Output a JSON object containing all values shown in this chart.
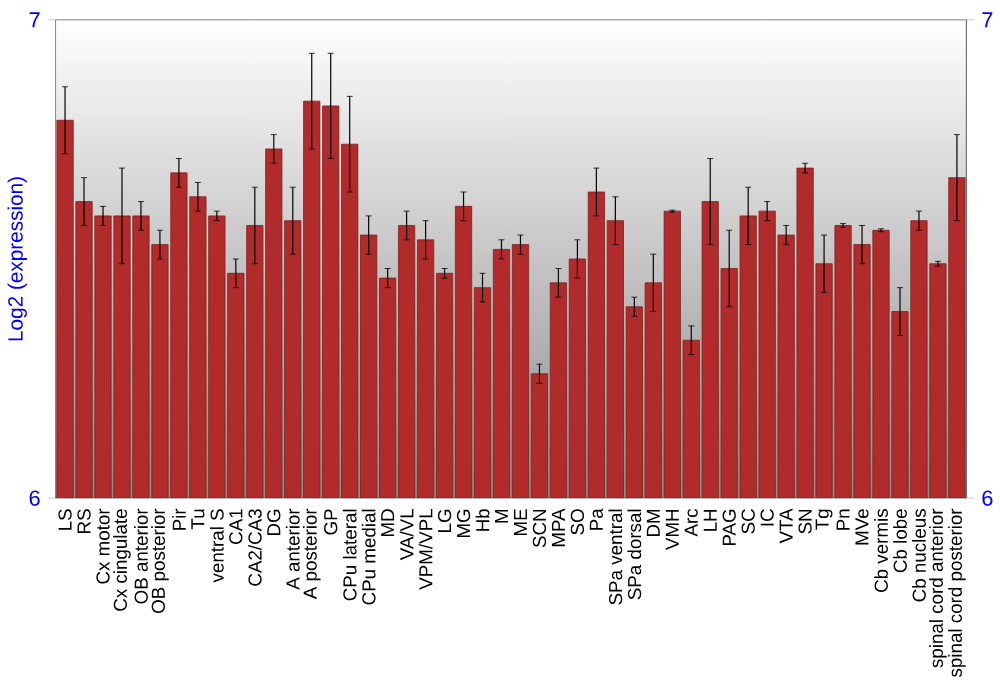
{
  "chart_data": {
    "type": "bar",
    "ylabel": "Log2 (expression)",
    "categories": [
      "LS",
      "RS",
      "Cx motor",
      "Cx cingulate",
      "OB anterior",
      "OB posterior",
      "Pir",
      "Tu",
      "ventral S",
      "CA1",
      "CA2/CA3",
      "DG",
      "A anterior",
      "A posterior",
      "GP",
      "CPu lateral",
      "CPu medial",
      "MD",
      "VA/VL",
      "VPM/VPL",
      "LG",
      "MG",
      "Hb",
      "M",
      "ME",
      "SCN",
      "MPA",
      "SO",
      "Pa",
      "SPa ventral",
      "SPa dorsal",
      "DM",
      "VMH",
      "Arc",
      "LH",
      "PAG",
      "SC",
      "IC",
      "VTA",
      "SN",
      "Tg",
      "Pn",
      "MVe",
      "Cb vermis",
      "Cb lobe",
      "Cb nucleus",
      "spinal cord anterior",
      "spinal cord posterior"
    ],
    "values": [
      6.79,
      6.62,
      6.59,
      6.59,
      6.59,
      6.53,
      6.68,
      6.63,
      6.59,
      6.47,
      6.57,
      6.73,
      6.58,
      6.83,
      6.82,
      6.74,
      6.55,
      6.46,
      6.57,
      6.54,
      6.47,
      6.61,
      6.44,
      6.52,
      6.53,
      6.26,
      6.45,
      6.5,
      6.64,
      6.58,
      6.4,
      6.45,
      6.6,
      6.33,
      6.62,
      6.48,
      6.59,
      6.6,
      6.55,
      6.69,
      6.49,
      6.57,
      6.53,
      6.56,
      6.39,
      6.58,
      6.49,
      6.67
    ],
    "errors": [
      0.07,
      0.05,
      0.02,
      0.1,
      0.03,
      0.03,
      0.03,
      0.03,
      0.01,
      0.03,
      0.08,
      0.03,
      0.07,
      0.1,
      0.11,
      0.1,
      0.04,
      0.02,
      0.03,
      0.04,
      0.01,
      0.03,
      0.03,
      0.02,
      0.02,
      0.02,
      0.03,
      0.04,
      0.05,
      0.05,
      0.02,
      0.06,
      0.002,
      0.03,
      0.09,
      0.08,
      0.06,
      0.02,
      0.02,
      0.01,
      0.06,
      0.004,
      0.04,
      0.003,
      0.05,
      0.02,
      0.005,
      0.09
    ],
    "color": "#b22b2b",
    "ylim": [
      6,
      7
    ],
    "yticks": [
      6,
      7
    ],
    "y2lim": [
      6,
      7
    ],
    "y2ticks": [
      6,
      7
    ]
  }
}
